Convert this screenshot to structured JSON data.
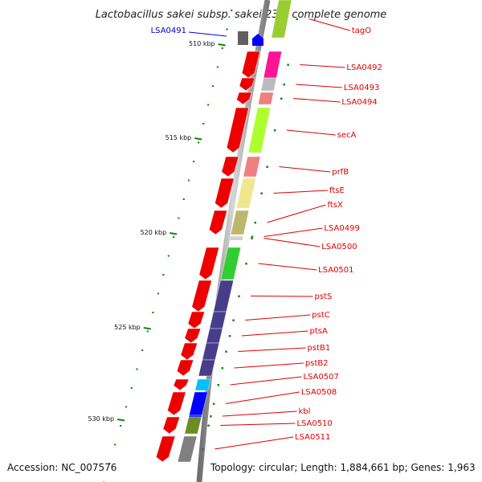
{
  "title": "Lactobacillus sakei subsp. sakei 23K, complete genome",
  "footer": {
    "accession": "Accession: NC_007576",
    "summary": "Topology: circular; Length: 1,884,661 bp; Genes: 1,963"
  },
  "ticks": [
    {
      "label": "510 kbp"
    },
    {
      "label": "515 kbp"
    },
    {
      "label": "520 kbp"
    },
    {
      "label": "525 kbp"
    },
    {
      "label": "530 kbp"
    }
  ],
  "colors": {
    "label_red": "#dd0000",
    "label_blue": "#0000cc",
    "cds_red": "#ee0000",
    "backbone": "#8c8c8c"
  },
  "genes": [
    {
      "name": "tagO",
      "color": "#9acd32"
    },
    {
      "name": "LSA0492",
      "color": "#ff1493"
    },
    {
      "name": "LSA0493",
      "color": "#bbbbbb"
    },
    {
      "name": "LSA0494",
      "color": "#f08080"
    },
    {
      "name": "secA",
      "color": "#adff2f"
    },
    {
      "name": "prfB",
      "color": "#f08080"
    },
    {
      "name": "ftsE",
      "color": "#f0e68c"
    },
    {
      "name": "ftsX",
      "color": "#bdb76b"
    },
    {
      "name": "LSA0499",
      "color": "#cccccc"
    },
    {
      "name": "LSA0500",
      "color": "#cccccc"
    },
    {
      "name": "LSA0501",
      "color": "#32cd32"
    },
    {
      "name": "pstS",
      "color": "#483d8b"
    },
    {
      "name": "pstC",
      "color": "#483d8b"
    },
    {
      "name": "ptsA",
      "color": "#483d8b"
    },
    {
      "name": "pstB1",
      "color": "#483d8b"
    },
    {
      "name": "pstB2",
      "color": "#483d8b"
    },
    {
      "name": "LSA0507",
      "color": "#00bfff"
    },
    {
      "name": "LSA0508",
      "color": "#0000ff"
    },
    {
      "name": "kbl",
      "color": "#0000ff"
    },
    {
      "name": "LSA0510",
      "color": "#6b8e23"
    },
    {
      "name": "LSA0511",
      "color": "#808080"
    },
    {
      "name": "LSA0491",
      "color": "#0000ff"
    }
  ]
}
